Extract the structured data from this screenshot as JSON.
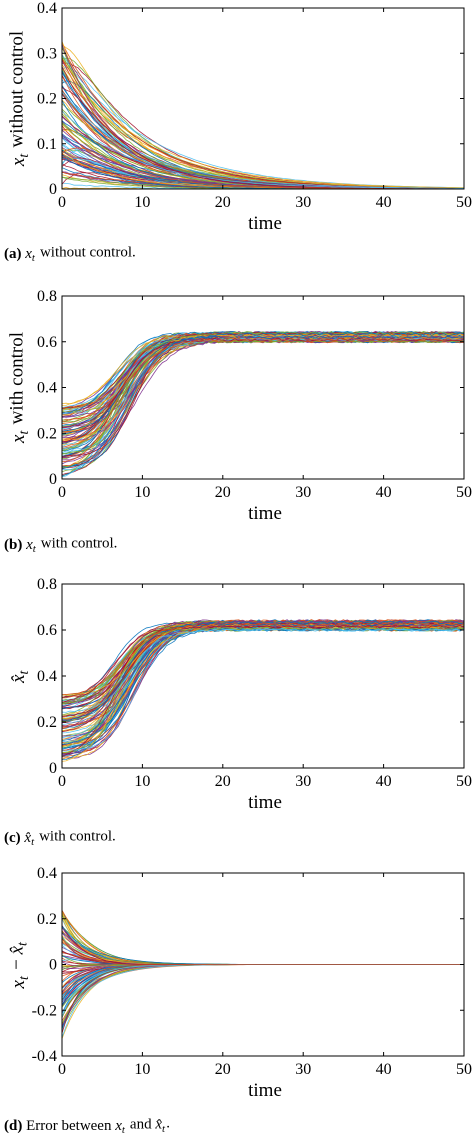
{
  "chart_data": [
    {
      "type": "line",
      "key": "a",
      "xlabel": "time",
      "ylabel": "x_t without control",
      "xlim": [
        0,
        50
      ],
      "ylim": [
        0,
        0.4
      ],
      "xticks": [
        "0",
        "10",
        "20",
        "30",
        "40",
        "50"
      ],
      "yticks": [
        "0",
        "0.1",
        "0.2",
        "0.3",
        "0.4"
      ],
      "grid": false,
      "n_trajectories": 100,
      "initial_range": [
        0.0,
        0.33
      ],
      "decay_rate": 0.13,
      "final_value": 0.0,
      "caption_label": "(a)",
      "caption_text": "x_t without control."
    },
    {
      "type": "line",
      "key": "b",
      "xlabel": "time",
      "ylabel": "x_t with control",
      "xlim": [
        0,
        50
      ],
      "ylim": [
        0,
        0.8
      ],
      "xticks": [
        "0",
        "10",
        "20",
        "30",
        "40",
        "50"
      ],
      "yticks": [
        "0",
        "0.2",
        "0.4",
        "0.6",
        "0.8"
      ],
      "grid": false,
      "n_trajectories": 100,
      "initial_range": [
        0.0,
        0.33
      ],
      "steady_range": [
        0.6,
        0.64
      ],
      "settling_time": 14,
      "caption_label": "(b)",
      "caption_text": "x_t with control."
    },
    {
      "type": "line",
      "key": "c",
      "xlabel": "time",
      "ylabel": "x̂_t",
      "xlim": [
        0,
        50
      ],
      "ylim": [
        0,
        0.8
      ],
      "xticks": [
        "0",
        "10",
        "20",
        "30",
        "40",
        "50"
      ],
      "yticks": [
        "0",
        "0.2",
        "0.4",
        "0.6",
        "0.8"
      ],
      "grid": false,
      "n_trajectories": 100,
      "initial_range": [
        0.02,
        0.32
      ],
      "steady_range": [
        0.6,
        0.64
      ],
      "settling_time": 14,
      "caption_label": "(c)",
      "caption_text": "x̂_t with control."
    },
    {
      "type": "line",
      "key": "d",
      "xlabel": "time",
      "ylabel": "x_t − x̂_t",
      "xlim": [
        0,
        50
      ],
      "ylim": [
        -0.4,
        0.4
      ],
      "xticks": [
        "0",
        "10",
        "20",
        "30",
        "40",
        "50"
      ],
      "yticks": [
        "-0.4",
        "-0.2",
        "0",
        "0.2",
        "0.4"
      ],
      "grid": false,
      "n_trajectories": 100,
      "initial_range": [
        -0.33,
        0.26
      ],
      "final_value": 0.0,
      "settling_time": 15,
      "caption_label": "(d)",
      "caption_text": "Error between x_t and x̂_t."
    }
  ],
  "series_colors": [
    "#0072BD",
    "#D95319",
    "#EDB120",
    "#7E2F8E",
    "#77AC30",
    "#4DBEEE",
    "#A2142F"
  ]
}
